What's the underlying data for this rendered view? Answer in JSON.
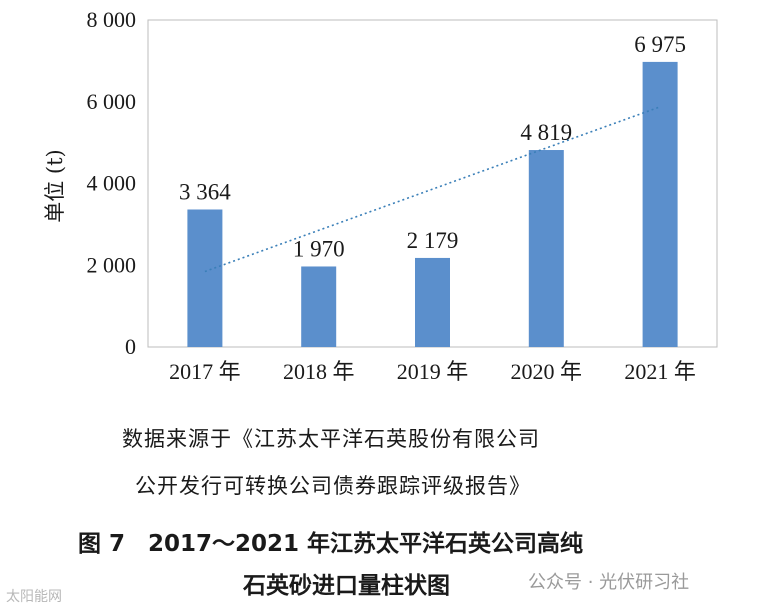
{
  "chart_data": {
    "type": "bar",
    "categories": [
      "2017 年",
      "2018 年",
      "2019 年",
      "2020 年",
      "2021 年"
    ],
    "values": [
      3364,
      1970,
      2179,
      4819,
      6975
    ],
    "value_labels": [
      "3 364",
      "1 970",
      "2 179",
      "4 819",
      "6 975"
    ],
    "ylabel": "单位 (t)",
    "ylim": [
      0,
      8000
    ],
    "yticks": [
      0,
      2000,
      4000,
      6000,
      8000
    ],
    "ytick_labels": [
      "0",
      "2 000",
      "4 000",
      "6 000",
      "8 000"
    ],
    "trendline": "linear",
    "grid": false,
    "legend": "none",
    "bar_color": "#5b8fcc",
    "trend_color": "#3a7fb8"
  },
  "source_note": {
    "line1": "数据来源于《江苏太平洋石英股份有限公司",
    "line2": "公开发行可转换公司债券跟踪评级报告》"
  },
  "caption": {
    "line1": "图 7　2017～2021 年江苏太平洋石英公司高纯",
    "line2": "石英砂进口量柱状图"
  },
  "watermarks": {
    "left": "太阳能网",
    "right": "公众号 · 光伏研习社"
  }
}
